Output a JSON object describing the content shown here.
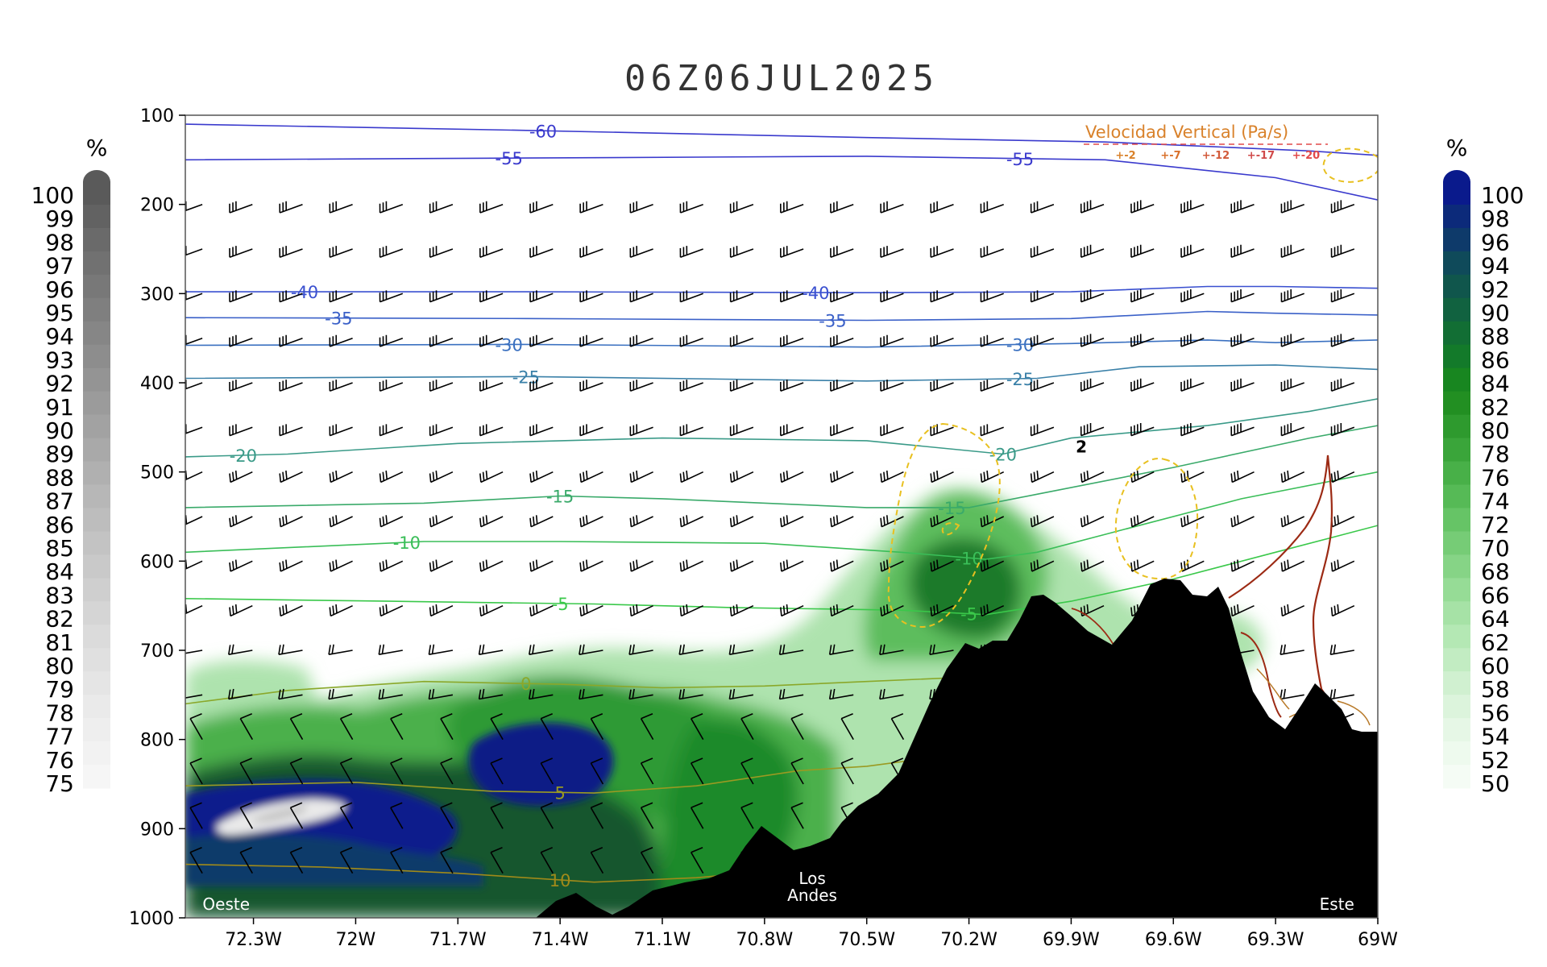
{
  "chart_data": {
    "type": "cross-section",
    "title": "06Z06JUL2025",
    "y_axis": {
      "ticks": [
        100,
        200,
        300,
        400,
        500,
        600,
        700,
        800,
        900,
        1000
      ],
      "ylim": [
        100,
        1000
      ],
      "reversed": true
    },
    "x_axis": {
      "ticks": [
        "72.3W",
        "72W",
        "71.7W",
        "71.4W",
        "71.1W",
        "70.8W",
        "70.5W",
        "70.2W",
        "69.9W",
        "69.6W",
        "69.3W",
        "69W"
      ],
      "xlim": [
        -72.5,
        -69.0
      ]
    },
    "left_colorbar": {
      "unit": "%",
      "levels": [
        100,
        99,
        98,
        97,
        96,
        95,
        94,
        93,
        92,
        91,
        90,
        89,
        88,
        87,
        86,
        85,
        84,
        83,
        82,
        81,
        80,
        79,
        78,
        77,
        76,
        75
      ]
    },
    "right_colorbar": {
      "unit": "%",
      "levels": [
        100,
        98,
        96,
        94,
        92,
        90,
        88,
        86,
        84,
        82,
        80,
        78,
        76,
        74,
        72,
        70,
        68,
        66,
        64,
        62,
        60,
        58,
        56,
        54,
        52,
        50
      ]
    },
    "temperature_contours": [
      {
        "value": -60,
        "label": "-60",
        "points": [
          [
            -72.5,
            110
          ],
          [
            -71.5,
            117
          ],
          [
            -70.5,
            125
          ],
          [
            -69.8,
            130
          ],
          [
            -69.5,
            135
          ],
          [
            -69.2,
            140
          ],
          [
            -69.0,
            145
          ]
        ],
        "label_x": -71.45,
        "color": "#3a3acd"
      },
      {
        "value": -55,
        "label": "-55",
        "points": [
          [
            -72.5,
            150
          ],
          [
            -71.5,
            148
          ],
          [
            -70.5,
            146
          ],
          [
            -69.8,
            150
          ],
          [
            -69.6,
            158
          ],
          [
            -69.3,
            170
          ],
          [
            -69.0,
            195
          ]
        ],
        "label_x": -71.55,
        "label_x2": -70.05,
        "color": "#3a3acd"
      },
      {
        "value": -40,
        "label": "-40",
        "points": [
          [
            -72.5,
            298
          ],
          [
            -71.5,
            298
          ],
          [
            -70.5,
            299
          ],
          [
            -69.9,
            298
          ],
          [
            -69.5,
            292
          ],
          [
            -69.3,
            292
          ],
          [
            -69.0,
            294
          ]
        ],
        "label_x": -72.15,
        "label_x2": -70.65,
        "color": "#3a50d0"
      },
      {
        "value": -35,
        "label": "-35",
        "points": [
          [
            -72.5,
            327
          ],
          [
            -71.5,
            328
          ],
          [
            -70.5,
            330
          ],
          [
            -69.9,
            328
          ],
          [
            -69.5,
            320
          ],
          [
            -69.3,
            322
          ],
          [
            -69.0,
            324
          ]
        ],
        "label_x": -72.05,
        "label_x2": -70.6,
        "color": "#3a60c8"
      },
      {
        "value": -30,
        "label": "-30",
        "points": [
          [
            -72.5,
            358
          ],
          [
            -71.5,
            357
          ],
          [
            -70.5,
            360
          ],
          [
            -69.9,
            356
          ],
          [
            -69.5,
            352
          ],
          [
            -69.3,
            355
          ],
          [
            -69.0,
            352
          ]
        ],
        "label_x": -71.55,
        "label_x2": -70.05,
        "color": "#3a70c0"
      },
      {
        "value": -25,
        "label": "-25",
        "points": [
          [
            -72.5,
            395
          ],
          [
            -71.5,
            393
          ],
          [
            -70.5,
            398
          ],
          [
            -70.0,
            395
          ],
          [
            -69.7,
            382
          ],
          [
            -69.3,
            380
          ],
          [
            -69.0,
            385
          ]
        ],
        "label_x": -71.5,
        "label_x2": -70.05,
        "color": "#3a80a8"
      },
      {
        "value": -20,
        "label": "-20",
        "points": [
          [
            -72.5,
            483
          ],
          [
            -72.2,
            480
          ],
          [
            -71.7,
            468
          ],
          [
            -71.1,
            462
          ],
          [
            -70.5,
            465
          ],
          [
            -70.1,
            480
          ],
          [
            -69.9,
            462
          ],
          [
            -69.5,
            448
          ],
          [
            -69.2,
            432
          ],
          [
            -69.0,
            418
          ]
        ],
        "label_x": -72.33,
        "label_x2": -70.1,
        "color": "#3a9a88"
      },
      {
        "value": -15,
        "label": "-15",
        "points": [
          [
            -72.5,
            540
          ],
          [
            -71.8,
            535
          ],
          [
            -71.4,
            527
          ],
          [
            -71.1,
            530
          ],
          [
            -70.5,
            540
          ],
          [
            -70.2,
            540
          ],
          [
            -70.0,
            525
          ],
          [
            -69.6,
            495
          ],
          [
            -69.2,
            462
          ],
          [
            -69.0,
            448
          ]
        ],
        "label_x": -71.4,
        "label_x2": -70.25,
        "color": "#3aaa6a"
      },
      {
        "value": -10,
        "label": "-10",
        "points": [
          [
            -72.5,
            590
          ],
          [
            -71.8,
            578
          ],
          [
            -71.4,
            578
          ],
          [
            -70.8,
            580
          ],
          [
            -70.4,
            590
          ],
          [
            -70.15,
            598
          ],
          [
            -70.0,
            590
          ],
          [
            -69.8,
            570
          ],
          [
            -69.4,
            530
          ],
          [
            -69.0,
            500
          ]
        ],
        "label_x": -71.85,
        "label_x2": -70.2,
        "color": "#3abe58"
      },
      {
        "value": -5,
        "label": "-5",
        "points": [
          [
            -72.5,
            642
          ],
          [
            -71.9,
            645
          ],
          [
            -71.3,
            648
          ],
          [
            -70.9,
            652
          ],
          [
            -70.4,
            655
          ],
          [
            -70.15,
            660
          ],
          [
            -69.9,
            645
          ],
          [
            -69.6,
            620
          ],
          [
            -69.3,
            590
          ],
          [
            -69.0,
            560
          ]
        ],
        "label_x": -71.4,
        "label_x2": -70.2,
        "color": "#3ac84a"
      },
      {
        "value": 0,
        "label": "0",
        "points": [
          [
            -72.5,
            760
          ],
          [
            -72.2,
            745
          ],
          [
            -71.8,
            735
          ],
          [
            -71.4,
            738
          ],
          [
            -71.1,
            742
          ],
          [
            -70.8,
            740
          ],
          [
            -70.5,
            735
          ],
          [
            -70.2,
            730
          ]
        ],
        "label_x": -71.5,
        "color": "#8aa82a"
      },
      {
        "value": 5,
        "label": "5",
        "points": [
          [
            -72.5,
            852
          ],
          [
            -72.0,
            848
          ],
          [
            -71.6,
            858
          ],
          [
            -71.3,
            860
          ],
          [
            -71.0,
            852
          ],
          [
            -70.7,
            835
          ],
          [
            -70.5,
            830
          ],
          [
            -70.3,
            820
          ]
        ],
        "label_x": -71.4,
        "color": "#9a9a22"
      },
      {
        "value": 10,
        "label": "10",
        "points": [
          [
            -72.5,
            940
          ],
          [
            -72.1,
            943
          ],
          [
            -71.7,
            950
          ],
          [
            -71.3,
            960
          ],
          [
            -71.0,
            955
          ],
          [
            -70.7,
            945
          ],
          [
            -70.5,
            940
          ],
          [
            -70.3,
            930
          ]
        ],
        "label_x": -71.4,
        "color": "#a08a1a"
      }
    ],
    "annotations": [
      {
        "text": "Los",
        "x": -70.66,
        "p": 962
      },
      {
        "text": "Andes",
        "x": -70.66,
        "p": 981
      },
      {
        "text": "Oeste",
        "x": -72.38,
        "p": 991
      },
      {
        "text": "Este",
        "x": -69.12,
        "p": 991
      },
      {
        "text": "2",
        "x": -69.87,
        "p": 478
      }
    ],
    "legend": {
      "title": "Velocidad Vertical  (Pa/s)",
      "entries": [
        "+-2",
        "+-7",
        "+-12",
        "+-17",
        "+-20"
      ],
      "placement": "top-right"
    },
    "colors": {
      "gray_scale": [
        "#5a5a5a",
        "#626262",
        "#6a6a6a",
        "#717171",
        "#787878",
        "#7f7f7f",
        "#868686",
        "#8d8d8d",
        "#949494",
        "#9b9b9b",
        "#a2a2a2",
        "#a9a9a9",
        "#b0b0b0",
        "#b7b7b7",
        "#bdbdbd",
        "#c3c3c3",
        "#c9c9c9",
        "#cfcfcf",
        "#d5d5d5",
        "#dbdbdb",
        "#e0e0e0",
        "#e5e5e5",
        "#eaeaea",
        "#eeeeee",
        "#f2f2f2",
        "#f6f6f6"
      ],
      "green_blue_scale": [
        "#0a1a8c",
        "#0c2a7a",
        "#0e3a6a",
        "#0f4a5a",
        "#10564c",
        "#116240",
        "#126e34",
        "#137a2a",
        "#188620",
        "#228f22",
        "#2e9a2e",
        "#3aa53a",
        "#48b048",
        "#56ba56",
        "#66c466",
        "#76cc76",
        "#86d486",
        "#96dc96",
        "#a6e2a6",
        "#b4e8b4",
        "#c2ecc2",
        "#d0f0d0",
        "#dcf4dc",
        "#e6f7e6",
        "#eefaee",
        "#f5fcf5"
      ],
      "terrain": "#000000",
      "omega_positive": "#e8c020",
      "omega_negative": "#9c2a14",
      "legend_text": "#d9822b",
      "legend_dash": "#e24a4a"
    }
  }
}
